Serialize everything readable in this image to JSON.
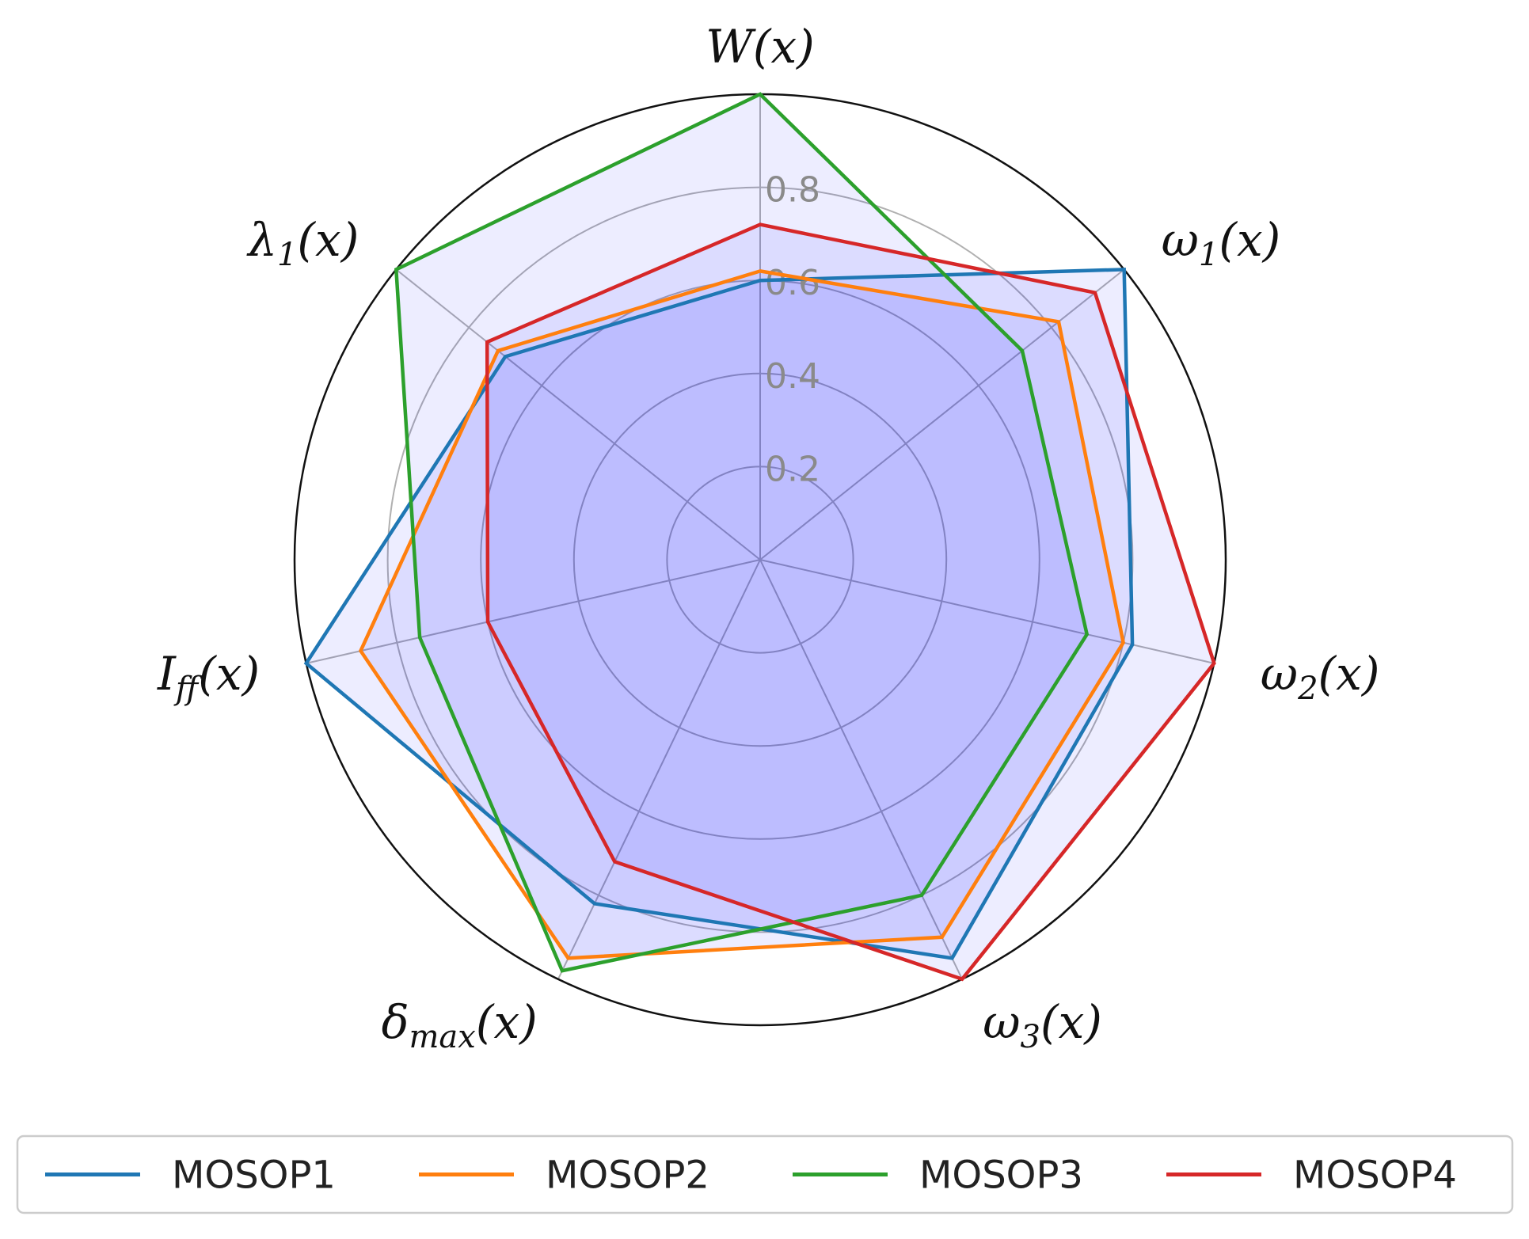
{
  "chart_data": {
    "type": "radar",
    "axes": [
      {
        "base": "W",
        "sub": "",
        "tail": "(x)"
      },
      {
        "base": "ω",
        "sub": "1",
        "tail": "(x)"
      },
      {
        "base": "ω",
        "sub": "2",
        "tail": "(x)"
      },
      {
        "base": "ω",
        "sub": "3",
        "tail": "(x)"
      },
      {
        "base": "δ",
        "sub": "max",
        "tail": "(x)"
      },
      {
        "base": "I",
        "sub": "ff",
        "tail": "(x)"
      },
      {
        "base": "λ",
        "sub": "1",
        "tail": "(x)"
      }
    ],
    "rlim": [
      0,
      1
    ],
    "rticks": [
      0.2,
      0.4,
      0.6,
      0.8
    ],
    "rtick_labels": [
      "0.2",
      "0.4",
      "0.6",
      "0.8"
    ],
    "grid": true,
    "legend_position": "bottom",
    "series": [
      {
        "name": "MOSOP1",
        "color": "#1f77b4",
        "values": [
          0.6,
          1.0,
          0.82,
          0.95,
          0.82,
          1.0,
          0.7
        ]
      },
      {
        "name": "MOSOP2",
        "color": "#ff7f0e",
        "values": [
          0.62,
          0.82,
          0.8,
          0.9,
          0.95,
          0.88,
          0.72
        ]
      },
      {
        "name": "MOSOP3",
        "color": "#2ca02c",
        "values": [
          1.0,
          0.72,
          0.72,
          0.8,
          0.98,
          0.75,
          1.0
        ]
      },
      {
        "name": "MOSOP4",
        "color": "#d62728",
        "values": [
          0.72,
          0.92,
          1.0,
          1.0,
          0.72,
          0.6,
          0.75
        ]
      }
    ],
    "fill_color": "#0000ff"
  }
}
